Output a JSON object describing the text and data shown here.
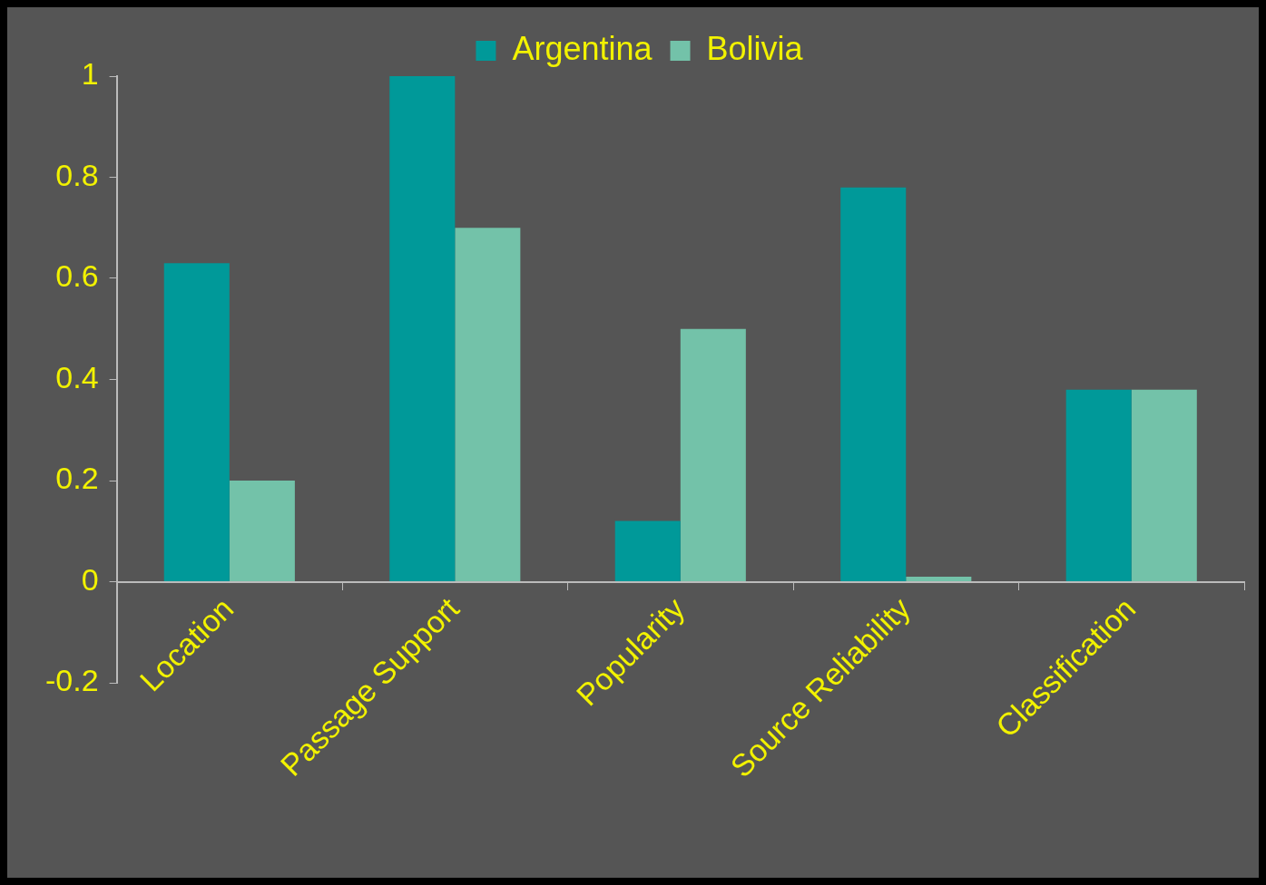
{
  "chart_data": {
    "type": "bar",
    "categories": [
      "Location",
      "Passage Support",
      "Popularity",
      "Source Reliability",
      "Classification"
    ],
    "series": [
      {
        "name": "Argentina",
        "color": "#009999",
        "values": [
          0.63,
          1.0,
          0.12,
          0.78,
          0.38
        ]
      },
      {
        "name": "Bolivia",
        "color": "#73c2a9",
        "values": [
          0.2,
          0.7,
          0.5,
          0.01,
          0.38
        ]
      }
    ],
    "ylim": [
      -0.2,
      1
    ],
    "yticks": [
      -0.2,
      0,
      0.2,
      0.4,
      0.6,
      0.8,
      1
    ],
    "grid": false,
    "legend": "top"
  }
}
